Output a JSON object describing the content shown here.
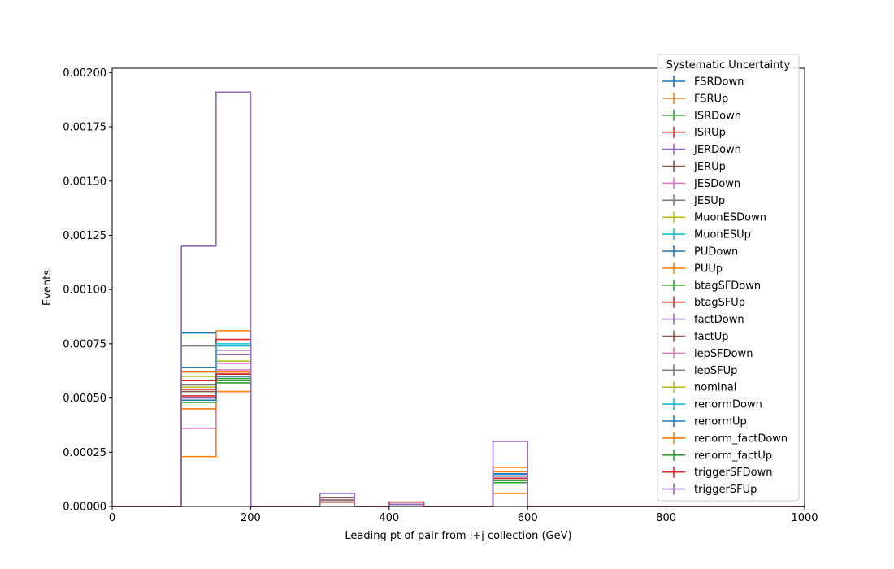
{
  "chart_data": {
    "type": "step",
    "xlabel": "Leading pt of pair from l+j collection (GeV)",
    "ylabel": "Events",
    "xlim": [
      0,
      1000
    ],
    "ylim": [
      0,
      0.00202
    ],
    "x_ticks": [
      0,
      200,
      400,
      600,
      800,
      1000
    ],
    "x_tick_labels": [
      "0",
      "200",
      "400",
      "600",
      "800",
      "1000"
    ],
    "y_ticks": [
      0,
      0.00025,
      0.0005,
      0.00075,
      0.001,
      0.00125,
      0.0015,
      0.00175,
      0.002
    ],
    "y_tick_labels": [
      "0.00000",
      "0.00025",
      "0.00050",
      "0.00075",
      "0.00100",
      "0.00125",
      "0.00150",
      "0.00175",
      "0.00200"
    ],
    "grid": false,
    "legend_title": "Systematic Uncertainty",
    "legend_position": "top-right",
    "bin_edges": [
      0,
      50,
      100,
      150,
      200,
      250,
      300,
      350,
      400,
      450,
      500,
      550,
      600,
      650,
      700,
      750,
      800,
      850,
      900,
      950,
      1000
    ],
    "series": [
      {
        "name": "FSRDown",
        "color": "#1f77b4",
        "values": [
          0,
          0,
          0.0008,
          0.00062,
          0,
          0,
          2e-05,
          0,
          1e-05,
          0,
          0,
          0.00014,
          0,
          0,
          0,
          0,
          0,
          0,
          0,
          0
        ]
      },
      {
        "name": "FSRUp",
        "color": "#ff7f0e",
        "values": [
          0,
          0,
          0.00023,
          0.00081,
          0,
          0,
          2e-05,
          0,
          1e-05,
          0,
          0,
          6e-05,
          0,
          0,
          0,
          0,
          0,
          0,
          0,
          0
        ]
      },
      {
        "name": "ISRDown",
        "color": "#2ca02c",
        "values": [
          0,
          0,
          0.00048,
          0.00057,
          0,
          0,
          2e-05,
          0,
          1e-05,
          0,
          0,
          0.00012,
          0,
          0,
          0,
          0,
          0,
          0,
          0,
          0
        ]
      },
      {
        "name": "ISRUp",
        "color": "#d62728",
        "values": [
          0,
          0,
          0.00051,
          0.00077,
          0,
          0,
          3e-05,
          0,
          2e-05,
          0,
          0,
          0.00014,
          0,
          0,
          0,
          0,
          0,
          0,
          0,
          0
        ]
      },
      {
        "name": "JERDown",
        "color": "#9467bd",
        "values": [
          0,
          0,
          0.0005,
          0.00072,
          0,
          0,
          3e-05,
          0,
          1e-05,
          0,
          0,
          0.00015,
          0,
          0,
          0,
          0,
          0,
          0,
          0,
          0
        ]
      },
      {
        "name": "JERUp",
        "color": "#8c564b",
        "values": [
          0,
          0,
          0.00055,
          0.0007,
          0,
          0,
          4e-05,
          0,
          1e-05,
          0,
          0,
          0.00013,
          0,
          0,
          0,
          0,
          0,
          0,
          0,
          0
        ]
      },
      {
        "name": "JESDown",
        "color": "#e377c2",
        "values": [
          0,
          0,
          0.00036,
          0.00066,
          0,
          0,
          2e-05,
          0,
          1e-05,
          0,
          0,
          0.00012,
          0,
          0,
          0,
          0,
          0,
          0,
          0,
          0
        ]
      },
      {
        "name": "JESUp",
        "color": "#7f7f7f",
        "values": [
          0,
          0,
          0.00074,
          0.0006,
          0,
          0,
          3e-05,
          0,
          1e-05,
          0,
          0,
          0.00014,
          0,
          0,
          0,
          0,
          0,
          0,
          0,
          0
        ]
      },
      {
        "name": "MuonESDown",
        "color": "#bcbd22",
        "values": [
          0,
          0,
          0.0006,
          0.00067,
          0,
          0,
          2e-05,
          0,
          1e-05,
          0,
          0,
          0.00013,
          0,
          0,
          0,
          0,
          0,
          0,
          0,
          0
        ]
      },
      {
        "name": "MuonESUp",
        "color": "#17becf",
        "values": [
          0,
          0,
          0.00062,
          0.00075,
          0,
          0,
          2e-05,
          0,
          1e-05,
          0,
          0,
          0.00015,
          0,
          0,
          0,
          0,
          0,
          0,
          0,
          0
        ]
      },
      {
        "name": "PUDown",
        "color": "#1f77b4",
        "values": [
          0,
          0,
          0.00064,
          0.00061,
          0,
          0,
          2e-05,
          0,
          1e-05,
          0,
          0,
          0.00014,
          0,
          0,
          0,
          0,
          0,
          0,
          0,
          0
        ]
      },
      {
        "name": "PUUp",
        "color": "#ff7f0e",
        "values": [
          0,
          0,
          0.00045,
          0.00053,
          0,
          0,
          2e-05,
          0,
          1e-05,
          0,
          0,
          0.00018,
          0,
          0,
          0,
          0,
          0,
          0,
          0,
          0
        ]
      },
      {
        "name": "btagSFDown",
        "color": "#2ca02c",
        "values": [
          0,
          0,
          0.00058,
          0.00059,
          0,
          0,
          2e-05,
          0,
          1e-05,
          0,
          0,
          0.00011,
          0,
          0,
          0,
          0,
          0,
          0,
          0,
          0
        ]
      },
      {
        "name": "btagSFUp",
        "color": "#d62728",
        "values": [
          0,
          0,
          0.00054,
          0.00062,
          0,
          0,
          2e-05,
          0,
          1e-05,
          0,
          0,
          0.00013,
          0,
          0,
          0,
          0,
          0,
          0,
          0,
          0
        ]
      },
      {
        "name": "factDown",
        "color": "#9467bd",
        "values": [
          0,
          0,
          0.00049,
          0.0007,
          0,
          0,
          2e-05,
          0,
          1e-05,
          0,
          0,
          0.00012,
          0,
          0,
          0,
          0,
          0,
          0,
          0,
          0
        ]
      },
      {
        "name": "factUp",
        "color": "#8c564b",
        "values": [
          0,
          0,
          0.00053,
          0.00061,
          0,
          0,
          2e-05,
          0,
          1e-05,
          0,
          0,
          0.00012,
          0,
          0,
          0,
          0,
          0,
          0,
          0,
          0
        ]
      },
      {
        "name": "lepSFDown",
        "color": "#e377c2",
        "values": [
          0,
          0,
          0.00062,
          0.00063,
          0,
          0,
          2e-05,
          0,
          1e-05,
          0,
          0,
          0.00016,
          0,
          0,
          0,
          0,
          0,
          0,
          0,
          0
        ]
      },
      {
        "name": "lepSFUp",
        "color": "#7f7f7f",
        "values": [
          0,
          0,
          0.00056,
          0.00061,
          0,
          0,
          2e-05,
          0,
          1e-05,
          0,
          0,
          0.00013,
          0,
          0,
          0,
          0,
          0,
          0,
          0,
          0
        ]
      },
      {
        "name": "nominal",
        "color": "#bcbd22",
        "values": [
          0,
          0,
          0.00055,
          0.00062,
          0,
          0,
          2e-05,
          0,
          1e-05,
          0,
          0,
          0.00013,
          0,
          0,
          0,
          0,
          0,
          0,
          0,
          0
        ]
      },
      {
        "name": "renormDown",
        "color": "#17becf",
        "values": [
          0,
          0,
          0.00058,
          0.00074,
          0,
          0,
          2e-05,
          0,
          1e-05,
          0,
          0,
          0.00013,
          0,
          0,
          0,
          0,
          0,
          0,
          0,
          0
        ]
      },
      {
        "name": "renormUp",
        "color": "#1f77b4",
        "values": [
          0,
          0,
          0.00049,
          0.0006,
          0,
          0,
          2e-05,
          0,
          1e-05,
          0,
          0,
          0.00015,
          0,
          0,
          0,
          0,
          0,
          0,
          0,
          0
        ]
      },
      {
        "name": "renorm_factDown",
        "color": "#ff7f0e",
        "values": [
          0,
          0,
          0.00062,
          0.00062,
          0,
          0,
          2e-05,
          0,
          1e-05,
          0,
          0,
          0.00016,
          0,
          0,
          0,
          0,
          0,
          0,
          0,
          0
        ]
      },
      {
        "name": "renorm_factUp",
        "color": "#2ca02c",
        "values": [
          0,
          0,
          0.00058,
          0.00058,
          0,
          0,
          2e-05,
          0,
          1e-05,
          0,
          0,
          0.00012,
          0,
          0,
          0,
          0,
          0,
          0,
          0,
          0
        ]
      },
      {
        "name": "triggerSFDown",
        "color": "#d62728",
        "values": [
          0,
          0,
          0.00058,
          0.00061,
          0,
          0,
          2e-05,
          0,
          2e-05,
          0,
          0,
          0.00013,
          0,
          0,
          0,
          0,
          0,
          0,
          0,
          0
        ]
      },
      {
        "name": "triggerSFUp",
        "color": "#9467bd",
        "values": [
          0,
          0,
          0.0012,
          0.00191,
          0,
          0,
          6e-05,
          0,
          1e-05,
          0,
          0,
          0.0003,
          0,
          0,
          0,
          0,
          0,
          0,
          0,
          0
        ]
      }
    ]
  }
}
